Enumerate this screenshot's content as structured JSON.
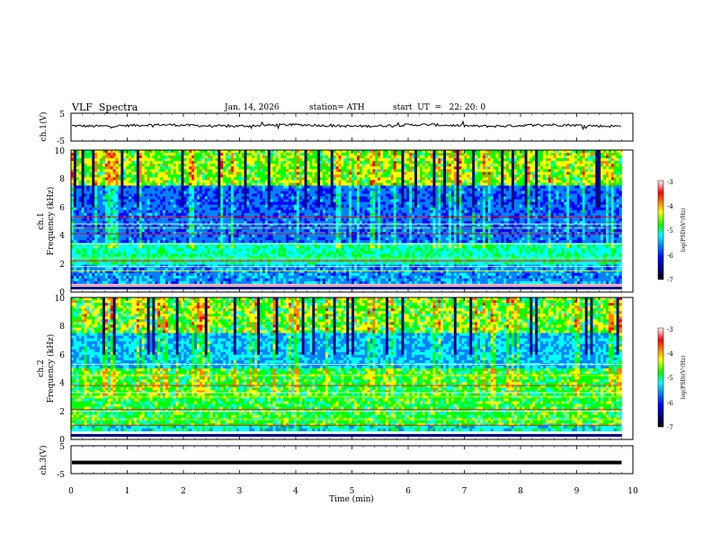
{
  "header": {
    "title": "VLF  Spectra",
    "date": "Jan. 14, 2026",
    "station": "station= ATH",
    "start": "start  UT  =   22: 20: 0"
  },
  "chart_data": [
    {
      "type": "line",
      "name": "ch1-waveform",
      "ylabel": "ch.1(V)",
      "ylim": [
        -5,
        5
      ],
      "yticks": [
        "5",
        "-5"
      ],
      "xlim": [
        0,
        10
      ],
      "approx_level": 0.6,
      "approx_amplitude": 0.9,
      "data_extent_min": 9.8
    },
    {
      "type": "heatmap",
      "name": "ch1-spectrogram",
      "ylabel": "Frequency  (kHz)",
      "ylabel2": "ch.1",
      "ylim": [
        0,
        10
      ],
      "yticks": [
        "0",
        "2",
        "4",
        "6",
        "8",
        "10"
      ],
      "xlim": [
        0,
        10
      ],
      "data_extent_min": 9.8,
      "colorbar": {
        "label": "log(PSD)(V²/Hz)",
        "range": [
          -7,
          -3
        ],
        "ticks": [
          "-3",
          "-4",
          "-5",
          "-6",
          "-7"
        ]
      }
    },
    {
      "type": "heatmap",
      "name": "ch2-spectrogram",
      "ylabel": "Frequency  (kHz)",
      "ylabel2": "ch.2",
      "ylim": [
        0,
        10
      ],
      "yticks": [
        "0",
        "2",
        "4",
        "6",
        "8",
        "10"
      ],
      "xlim": [
        0,
        10
      ],
      "data_extent_min": 9.8,
      "colorbar": {
        "label": "log(PSD)(V²/Hz)",
        "range": [
          -7,
          -3
        ],
        "ticks": [
          "-3",
          "-4",
          "-5",
          "-6",
          "-7"
        ]
      }
    },
    {
      "type": "line",
      "name": "ch3-waveform",
      "ylabel": "ch.3(V)",
      "ylim": [
        -5,
        5
      ],
      "yticks": [
        "5",
        "-5"
      ],
      "xlim": [
        0,
        10
      ],
      "approx_level": -1.0,
      "data_extent_min": 9.8
    }
  ],
  "xaxis": {
    "label": "Time  (min)",
    "ticks": [
      "0",
      "1",
      "2",
      "3",
      "4",
      "5",
      "6",
      "7",
      "8",
      "9",
      "10"
    ]
  },
  "colors": {
    "colormap": [
      "#000000",
      "#000080",
      "#0000ff",
      "#0080ff",
      "#00ffff",
      "#00ff00",
      "#ffff00",
      "#ff8000",
      "#ff0000",
      "#ffffff"
    ]
  }
}
